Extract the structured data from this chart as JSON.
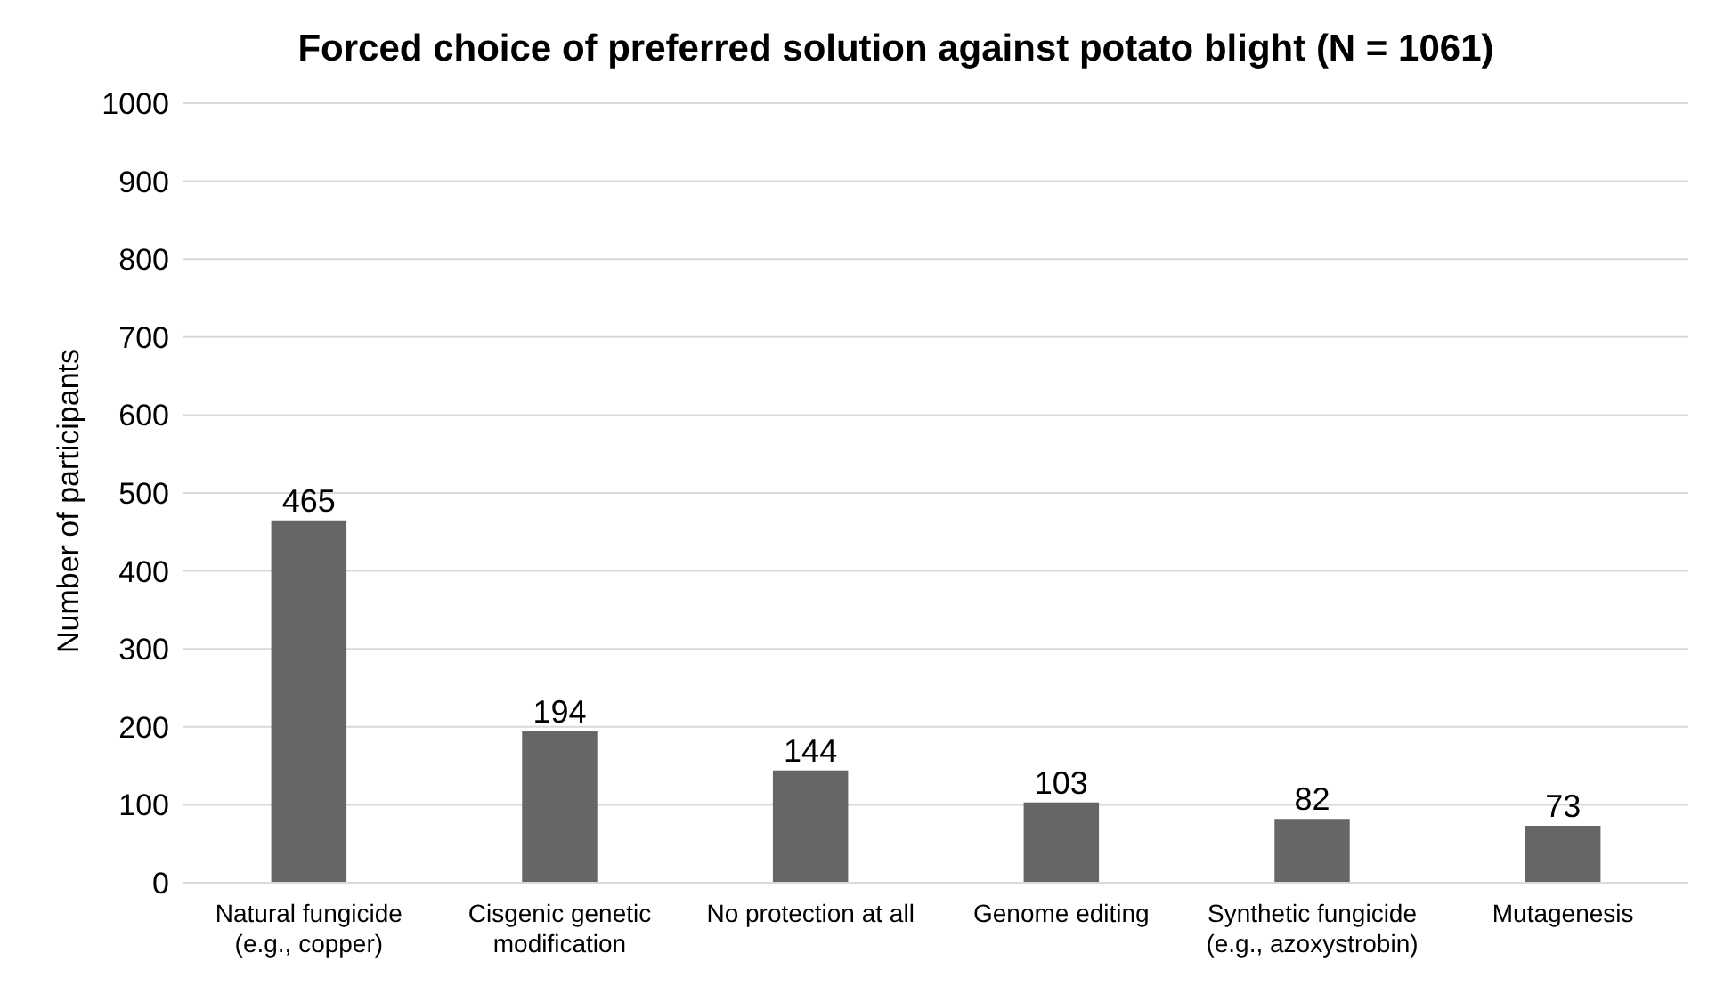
{
  "chart_data": {
    "type": "bar",
    "title": "Forced choice of preferred solution against potato blight (N = 1061)",
    "ylabel": "Number of participants",
    "categories": [
      "Natural fungicide (e.g., copper)",
      "Cisgenic genetic modification",
      "No protection at all",
      "Genome editing",
      "Synthetic fungicide (e.g., azoxystrobin)",
      "Mutagenesis"
    ],
    "values": [
      465,
      194,
      144,
      103,
      82,
      73
    ],
    "color": "#666666",
    "ylim": [
      0,
      1000
    ],
    "yticks": [
      0,
      100,
      200,
      300,
      400,
      500,
      600,
      700,
      800,
      900,
      1000
    ],
    "grid": "y",
    "data_labels": true
  }
}
